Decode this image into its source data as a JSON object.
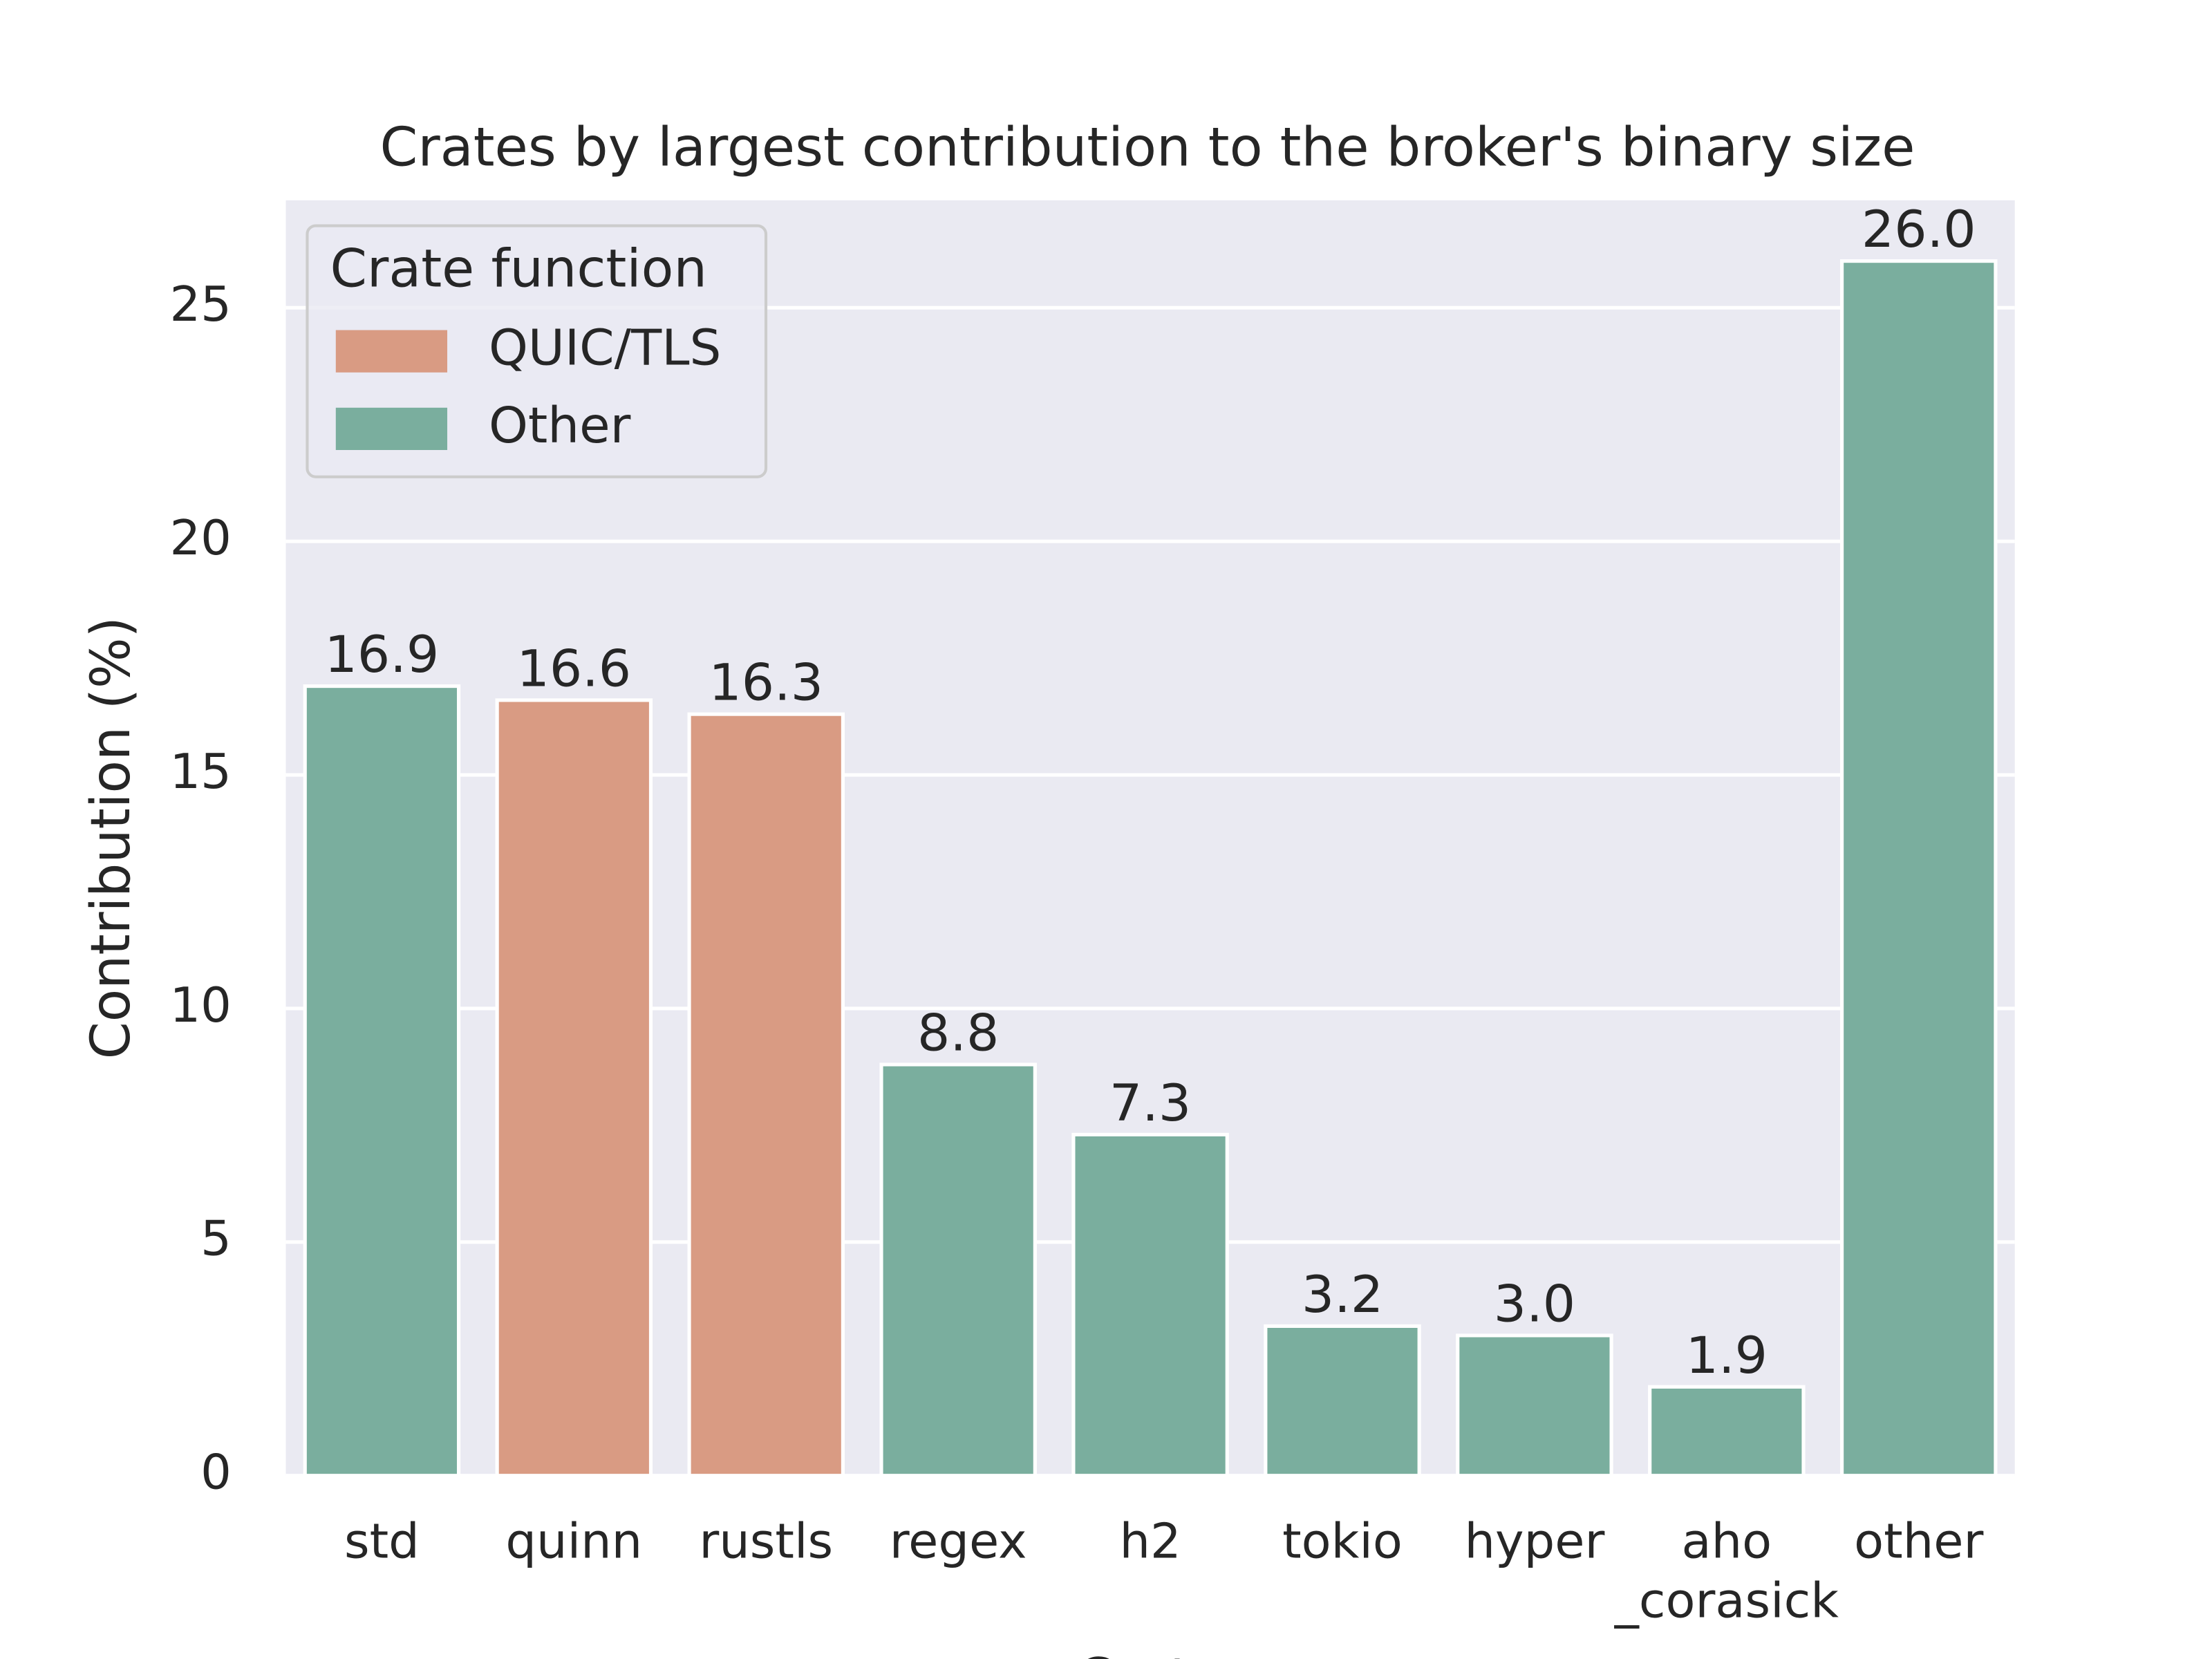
{
  "chart_data": {
    "type": "bar",
    "title": "Crates by largest contribution to the broker's binary size",
    "xlabel": "Crate",
    "ylabel": "Contribution (%)",
    "categories": [
      "std",
      "quinn",
      "rustls",
      "regex",
      "h2",
      "tokio",
      "hyper",
      "aho\n_corasick",
      "other"
    ],
    "series": [
      {
        "name": "QUIC/TLS",
        "color": "#d99b83",
        "values": [
          null,
          16.6,
          16.3,
          null,
          null,
          null,
          null,
          null,
          null
        ],
        "value_labels": [
          null,
          "16.6",
          "16.3",
          null,
          null,
          null,
          null,
          null,
          null
        ]
      },
      {
        "name": "Other",
        "color": "#7aae9e",
        "values": [
          16.9,
          null,
          null,
          8.8,
          7.3,
          3.2,
          3.0,
          1.9,
          26.0
        ],
        "value_labels": [
          "16.9",
          null,
          null,
          "8.8",
          "7.3",
          "3.2",
          "3.0",
          "1.9",
          "26.0"
        ]
      }
    ],
    "legend_title": "Crate function",
    "legend": "upper left",
    "ylim": [
      0,
      27.3
    ],
    "yticks": [
      0,
      5,
      10,
      15,
      20,
      25
    ],
    "grid": true
  }
}
